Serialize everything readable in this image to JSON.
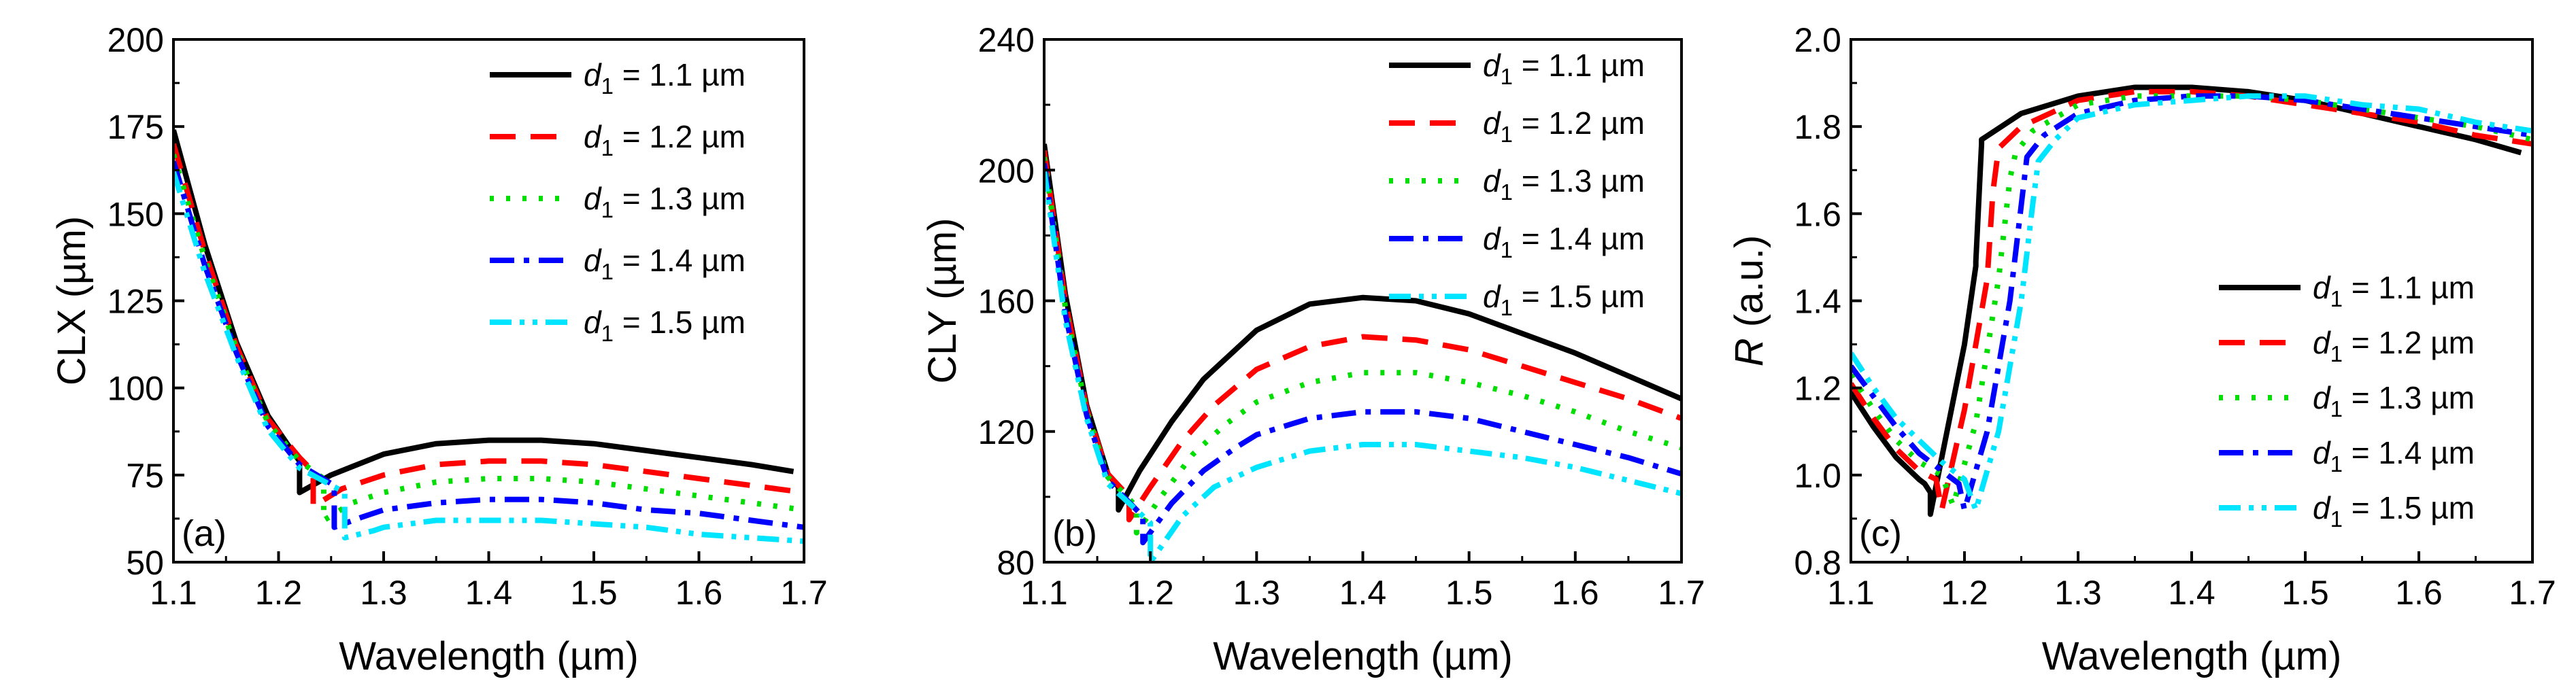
{
  "chart_data": [
    {
      "type": "line",
      "panel_label": "(a)",
      "xlabel": "Wavelength (µm)",
      "ylabel": "CLX (µm)",
      "xlim": [
        1.1,
        1.7
      ],
      "ylim": [
        50,
        200
      ],
      "xticks": [
        "1.1",
        "1.2",
        "1.3",
        "1.4",
        "1.5",
        "1.6",
        "1.7"
      ],
      "yticks": [
        "50",
        "75",
        "100",
        "125",
        "150",
        "175",
        "200"
      ],
      "legend_position": "top-right",
      "series": [
        {
          "name": "d1 = 1.1 µm",
          "color": "#000000",
          "style": "solid",
          "x": [
            1.1,
            1.13,
            1.16,
            1.19,
            1.215,
            1.22,
            1.22,
            1.25,
            1.3,
            1.35,
            1.4,
            1.45,
            1.5,
            1.55,
            1.6,
            1.65,
            1.69
          ],
          "y": [
            174,
            141,
            113,
            92,
            81,
            79,
            70,
            75,
            81,
            84,
            85,
            85,
            84,
            82,
            80,
            78,
            76
          ]
        },
        {
          "name": "d1 = 1.2 µm",
          "color": "#ff0000",
          "style": "dash",
          "x": [
            1.1,
            1.13,
            1.16,
            1.19,
            1.22,
            1.233,
            1.233,
            1.26,
            1.3,
            1.35,
            1.4,
            1.45,
            1.5,
            1.55,
            1.6,
            1.65,
            1.7
          ],
          "y": [
            170,
            139,
            112,
            91,
            80,
            76,
            66,
            71,
            75,
            78,
            79,
            79,
            78,
            76,
            74,
            72,
            70
          ]
        },
        {
          "name": "d1 = 1.3 µm",
          "color": "#00dd00",
          "style": "dot",
          "x": [
            1.1,
            1.13,
            1.16,
            1.19,
            1.22,
            1.243,
            1.243,
            1.27,
            1.3,
            1.35,
            1.4,
            1.45,
            1.5,
            1.55,
            1.6,
            1.65,
            1.7
          ],
          "y": [
            167,
            137,
            111,
            90,
            79,
            74,
            62,
            67,
            70,
            73,
            74,
            74,
            73,
            71,
            69,
            67,
            65
          ]
        },
        {
          "name": "d1 = 1.4 µm",
          "color": "#0000ff",
          "style": "dashdot",
          "x": [
            1.1,
            1.13,
            1.16,
            1.19,
            1.22,
            1.253,
            1.253,
            1.28,
            1.3,
            1.35,
            1.4,
            1.45,
            1.5,
            1.55,
            1.6,
            1.65,
            1.7
          ],
          "y": [
            165,
            135,
            110,
            89,
            78,
            72,
            60,
            63,
            65,
            67,
            68,
            68,
            67,
            65,
            64,
            62,
            60
          ]
        },
        {
          "name": "d1 = 1.5 µm",
          "color": "#00e5ff",
          "style": "dashdotdot",
          "x": [
            1.1,
            1.13,
            1.16,
            1.19,
            1.22,
            1.263,
            1.263,
            1.29,
            1.3,
            1.35,
            1.4,
            1.45,
            1.5,
            1.55,
            1.6,
            1.65,
            1.7
          ],
          "y": [
            162,
            133,
            109,
            88,
            77,
            70,
            57,
            59,
            60,
            62,
            62,
            62,
            61,
            60,
            58,
            57,
            56
          ]
        }
      ]
    },
    {
      "type": "line",
      "panel_label": "(b)",
      "xlabel": "Wavelength (µm)",
      "ylabel": "CLY (µm)",
      "xlim": [
        1.1,
        1.7
      ],
      "ylim": [
        80,
        240
      ],
      "xticks": [
        "1.1",
        "1.2",
        "1.3",
        "1.4",
        "1.5",
        "1.6",
        "1.7"
      ],
      "yticks": [
        "80",
        "120",
        "160",
        "200",
        "240"
      ],
      "legend_position": "top-right",
      "series": [
        {
          "name": "d1 = 1.1 µm",
          "color": "#000000",
          "style": "solid",
          "x": [
            1.1,
            1.12,
            1.14,
            1.16,
            1.17,
            1.17,
            1.19,
            1.22,
            1.25,
            1.3,
            1.35,
            1.4,
            1.45,
            1.5,
            1.55,
            1.6,
            1.65,
            1.7
          ],
          "y": [
            208,
            162,
            128,
            107,
            103,
            96,
            108,
            123,
            136,
            151,
            159,
            161,
            160,
            156,
            150,
            144,
            137,
            130
          ]
        },
        {
          "name": "d1 = 1.2 µm",
          "color": "#ff0000",
          "style": "dash",
          "x": [
            1.1,
            1.12,
            1.14,
            1.16,
            1.18,
            1.18,
            1.2,
            1.23,
            1.26,
            1.3,
            1.35,
            1.4,
            1.45,
            1.5,
            1.55,
            1.6,
            1.65,
            1.7
          ],
          "y": [
            206,
            160,
            127,
            107,
            100,
            93,
            103,
            117,
            128,
            139,
            146,
            149,
            148,
            145,
            140,
            135,
            130,
            124
          ]
        },
        {
          "name": "d1 = 1.3 µm",
          "color": "#00dd00",
          "style": "dot",
          "x": [
            1.1,
            1.12,
            1.14,
            1.16,
            1.187,
            1.187,
            1.21,
            1.24,
            1.27,
            1.3,
            1.35,
            1.4,
            1.45,
            1.5,
            1.55,
            1.6,
            1.65,
            1.7
          ],
          "y": [
            204,
            158,
            126,
            106,
            97,
            89,
            100,
            113,
            122,
            129,
            135,
            138,
            138,
            135,
            131,
            126,
            120,
            115
          ]
        },
        {
          "name": "d1 = 1.4 µm",
          "color": "#0000ff",
          "style": "dashdot",
          "x": [
            1.1,
            1.12,
            1.14,
            1.16,
            1.193,
            1.193,
            1.22,
            1.25,
            1.28,
            1.3,
            1.35,
            1.4,
            1.45,
            1.5,
            1.55,
            1.6,
            1.65,
            1.7
          ],
          "y": [
            202,
            156,
            125,
            105,
            94,
            86,
            98,
            108,
            115,
            119,
            124,
            126,
            126,
            124,
            120,
            116,
            112,
            107
          ]
        },
        {
          "name": "d1 = 1.5 µm",
          "color": "#00e5ff",
          "style": "dashdotdot",
          "x": [
            1.1,
            1.12,
            1.14,
            1.16,
            1.2,
            1.2,
            1.23,
            1.26,
            1.3,
            1.35,
            1.4,
            1.45,
            1.5,
            1.55,
            1.6,
            1.65,
            1.7
          ],
          "y": [
            200,
            154,
            124,
            104,
            92,
            80,
            94,
            103,
            109,
            114,
            116,
            116,
            114,
            112,
            109,
            105,
            101
          ]
        }
      ]
    },
    {
      "type": "line",
      "panel_label": "(c)",
      "xlabel": "Wavelength (µm)",
      "ylabel_italic": "R",
      "ylabel": " (a.u.)",
      "xlim": [
        1.1,
        1.7
      ],
      "ylim": [
        0.8,
        2.0
      ],
      "xticks": [
        "1.1",
        "1.2",
        "1.3",
        "1.4",
        "1.5",
        "1.6",
        "1.7"
      ],
      "yticks": [
        "0.8",
        "1.0",
        "1.2",
        "1.4",
        "1.6",
        "1.8",
        "2.0"
      ],
      "legend_position": "bottom-right",
      "series": [
        {
          "name": "d1 = 1.1 µm",
          "color": "#000000",
          "style": "solid",
          "x": [
            1.1,
            1.12,
            1.14,
            1.16,
            1.165,
            1.17,
            1.17,
            1.2,
            1.21,
            1.21,
            1.215,
            1.215,
            1.25,
            1.3,
            1.35,
            1.4,
            1.45,
            1.5,
            1.55,
            1.6,
            1.65,
            1.69
          ],
          "y": [
            1.19,
            1.11,
            1.04,
            0.99,
            0.98,
            0.96,
            0.91,
            1.3,
            1.48,
            1.49,
            1.76,
            1.77,
            1.83,
            1.87,
            1.89,
            1.89,
            1.88,
            1.86,
            1.83,
            1.8,
            1.77,
            1.74
          ]
        },
        {
          "name": "d1 = 1.2 µm",
          "color": "#ff0000",
          "style": "dash",
          "x": [
            1.1,
            1.12,
            1.14,
            1.16,
            1.175,
            1.18,
            1.18,
            1.2,
            1.22,
            1.225,
            1.23,
            1.25,
            1.3,
            1.35,
            1.4,
            1.45,
            1.5,
            1.55,
            1.6,
            1.65,
            1.7
          ],
          "y": [
            1.21,
            1.13,
            1.06,
            1.01,
            0.99,
            0.92,
            0.92,
            1.15,
            1.45,
            1.65,
            1.75,
            1.8,
            1.86,
            1.88,
            1.88,
            1.87,
            1.85,
            1.83,
            1.81,
            1.78,
            1.76
          ]
        },
        {
          "name": "d1 = 1.3 µm",
          "color": "#00dd00",
          "style": "dot",
          "x": [
            1.1,
            1.12,
            1.14,
            1.16,
            1.18,
            1.19,
            1.19,
            1.21,
            1.23,
            1.24,
            1.245,
            1.26,
            1.3,
            1.35,
            1.4,
            1.45,
            1.5,
            1.55,
            1.6,
            1.65,
            1.7
          ],
          "y": [
            1.23,
            1.15,
            1.08,
            1.03,
            1.0,
            0.93,
            0.93,
            1.12,
            1.45,
            1.68,
            1.74,
            1.79,
            1.85,
            1.87,
            1.87,
            1.87,
            1.86,
            1.84,
            1.82,
            1.8,
            1.77
          ]
        },
        {
          "name": "d1 = 1.4 µm",
          "color": "#0000ff",
          "style": "dashdot",
          "x": [
            1.1,
            1.12,
            1.14,
            1.16,
            1.18,
            1.195,
            1.2,
            1.2,
            1.22,
            1.24,
            1.25,
            1.255,
            1.27,
            1.3,
            1.35,
            1.4,
            1.45,
            1.5,
            1.55,
            1.6,
            1.65,
            1.7
          ],
          "y": [
            1.25,
            1.18,
            1.11,
            1.05,
            1.01,
            0.98,
            0.92,
            0.92,
            1.1,
            1.4,
            1.62,
            1.73,
            1.78,
            1.83,
            1.86,
            1.87,
            1.87,
            1.86,
            1.84,
            1.82,
            1.8,
            1.78
          ]
        },
        {
          "name": "d1 = 1.5 µm",
          "color": "#00e5ff",
          "style": "dashdotdot",
          "x": [
            1.1,
            1.12,
            1.14,
            1.16,
            1.18,
            1.2,
            1.21,
            1.21,
            1.23,
            1.25,
            1.26,
            1.265,
            1.28,
            1.3,
            1.35,
            1.4,
            1.45,
            1.5,
            1.55,
            1.6,
            1.65,
            1.7
          ],
          "y": [
            1.28,
            1.2,
            1.13,
            1.08,
            1.03,
            0.99,
            0.92,
            0.92,
            1.1,
            1.4,
            1.62,
            1.72,
            1.77,
            1.82,
            1.85,
            1.86,
            1.87,
            1.87,
            1.85,
            1.84,
            1.81,
            1.79
          ]
        }
      ]
    }
  ],
  "legend_text": {
    "symbol": "d",
    "subscript": "1",
    "labels": [
      " = 1.1 µm",
      " = 1.2 µm",
      " = 1.3 µm",
      " = 1.4 µm",
      " = 1.5 µm"
    ]
  }
}
